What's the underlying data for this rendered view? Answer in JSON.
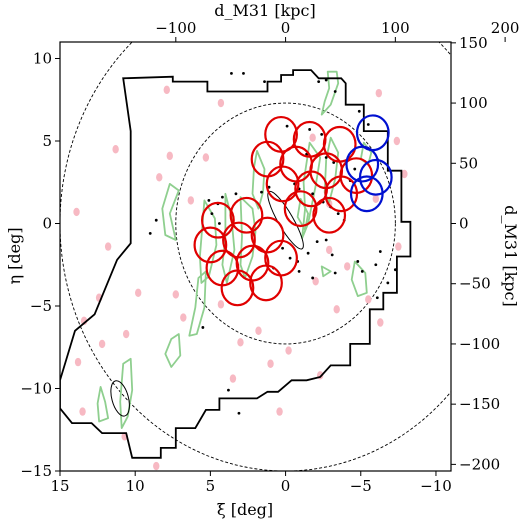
{
  "chart_data": {
    "type": "scatter",
    "xlabel": "ξ [deg]",
    "ylabel": "η [deg]",
    "top_xlabel": "d_M31 [kpc]",
    "right_ylabel": "d_M31 [kpc]",
    "xlim": [
      15,
      -11
    ],
    "ylim": [
      -15,
      11
    ],
    "x_ticks": [
      15,
      10,
      5,
      0,
      -5,
      -10
    ],
    "y_ticks": [
      10,
      5,
      0,
      -5,
      -10,
      -15
    ],
    "x_tick_labels": [
      "15",
      "10",
      "5",
      "0",
      "−5",
      "−10"
    ],
    "y_tick_labels": [
      "10",
      "5",
      "0",
      "−5",
      "−10",
      "−15"
    ],
    "top_ticks_kpc": [
      -100,
      0,
      100,
      200
    ],
    "top_tick_labels": [
      "−100",
      "0",
      "100",
      "200"
    ],
    "right_ticks_kpc": [
      150,
      100,
      50,
      0,
      -50,
      -100,
      -150,
      -200
    ],
    "right_tick_labels": [
      "150",
      "100",
      "50",
      "0",
      "−50",
      "−100",
      "−150",
      "−200"
    ],
    "kpc_per_deg": 13.7,
    "circles_dashed_radius_deg": [
      7.3,
      15
    ],
    "red_fields": [
      [
        0.3,
        5.4
      ],
      [
        -1.6,
        5.1
      ],
      [
        -3.6,
        4.8
      ],
      [
        1.2,
        3.9
      ],
      [
        -0.7,
        3.6
      ],
      [
        -2.7,
        3.2
      ],
      [
        -4.7,
        2.9
      ],
      [
        0.2,
        2.4
      ],
      [
        -1.7,
        2.1
      ],
      [
        -3.7,
        1.8
      ],
      [
        -1.0,
        0.9
      ],
      [
        -2.9,
        0.5
      ],
      [
        4.5,
        0.2
      ],
      [
        2.6,
        0.5
      ],
      [
        5.0,
        -1.3
      ],
      [
        3.1,
        -1.0
      ],
      [
        1.2,
        -0.7
      ],
      [
        4.2,
        -2.7
      ],
      [
        2.2,
        -2.4
      ],
      [
        0.3,
        -2.1
      ],
      [
        3.2,
        -3.9
      ],
      [
        1.3,
        -3.6
      ]
    ],
    "blue_fields": [
      [
        -5.8,
        5.5
      ],
      [
        -5.1,
        3.6
      ],
      [
        -6.0,
        2.8
      ],
      [
        -5.4,
        1.8
      ]
    ],
    "field_radius_deg": 1.05,
    "survey_outline": [
      [
        1.2,
        8.6
      ],
      [
        0.3,
        8.6
      ],
      [
        0.3,
        9.0
      ],
      [
        -0.5,
        9.0
      ],
      [
        -0.5,
        9.3
      ],
      [
        -1.7,
        9.3
      ],
      [
        -2.2,
        8.8
      ],
      [
        -3.7,
        8.8
      ],
      [
        -4.0,
        8.5
      ],
      [
        -4.0,
        7.2
      ],
      [
        -5.2,
        7.2
      ],
      [
        -5.2,
        5.6
      ],
      [
        -6.8,
        5.6
      ],
      [
        -6.8,
        3.2
      ],
      [
        -7.7,
        3.2
      ],
      [
        -7.7,
        0.1
      ],
      [
        -8.3,
        0.1
      ],
      [
        -8.3,
        -2.0
      ],
      [
        -7.4,
        -2.0
      ],
      [
        -7.4,
        -4.2
      ],
      [
        -6.5,
        -4.2
      ],
      [
        -6.5,
        -5.2
      ],
      [
        -5.6,
        -5.2
      ],
      [
        -5.6,
        -7.3
      ],
      [
        -4.3,
        -7.3
      ],
      [
        -4.3,
        -8.6
      ],
      [
        -3.0,
        -8.6
      ],
      [
        -2.3,
        -9.3
      ],
      [
        -1.4,
        -9.5
      ],
      [
        -0.4,
        -9.5
      ],
      [
        0.5,
        -10.2
      ],
      [
        1.2,
        -10.2
      ],
      [
        1.9,
        -10.6
      ],
      [
        3.0,
        -10.6
      ],
      [
        3.6,
        -10.6
      ],
      [
        4.4,
        -10.6
      ],
      [
        4.4,
        -11.3
      ],
      [
        5.3,
        -11.3
      ],
      [
        6.0,
        -12.4
      ],
      [
        7.3,
        -12.4
      ],
      [
        7.3,
        -13.6
      ],
      [
        8.3,
        -13.6
      ],
      [
        8.3,
        -14.2
      ],
      [
        10.2,
        -14.2
      ],
      [
        10.6,
        -12.7
      ],
      [
        12.2,
        -12.7
      ],
      [
        12.9,
        -12.1
      ],
      [
        14.2,
        -12.1
      ],
      [
        15.0,
        -11.2
      ],
      [
        15.0,
        -9.5
      ],
      [
        14.0,
        -6.5
      ],
      [
        12.7,
        -5.5
      ],
      [
        11.2,
        -2.2
      ],
      [
        10.3,
        -1.2
      ],
      [
        10.3,
        3.7
      ],
      [
        10.3,
        5.6
      ],
      [
        10.8,
        8.8
      ],
      [
        7.5,
        8.9
      ],
      [
        7.5,
        8.6
      ],
      [
        5.2,
        8.6
      ],
      [
        5.2,
        8.0
      ],
      [
        1.2,
        8.0
      ],
      [
        1.2,
        8.6
      ]
    ],
    "green_contours": [
      [
        [
          -2.8,
          9.2
        ],
        [
          -3.4,
          9.2
        ],
        [
          -3.5,
          8.5
        ],
        [
          -3.0,
          7.2
        ],
        [
          -2.4,
          6.6
        ],
        [
          -2.6,
          7.4
        ],
        [
          -2.9,
          8.2
        ],
        [
          -2.8,
          9.2
        ]
      ],
      [
        [
          -1.6,
          4.9
        ],
        [
          -2.3,
          4.0
        ],
        [
          -2.0,
          2.3
        ],
        [
          -1.5,
          0.0
        ],
        [
          -1.1,
          -0.9
        ],
        [
          -1.3,
          0.9
        ],
        [
          -1.2,
          2.5
        ],
        [
          -1.6,
          4.9
        ]
      ],
      [
        [
          -3.0,
          5.2
        ],
        [
          -3.5,
          4.3
        ],
        [
          -3.3,
          2.7
        ],
        [
          -2.9,
          1.3
        ],
        [
          -2.6,
          1.9
        ],
        [
          -2.7,
          3.9
        ],
        [
          -3.0,
          5.2
        ]
      ],
      [
        [
          -5.2,
          4.9
        ],
        [
          -5.7,
          4.3
        ],
        [
          -5.5,
          3.6
        ],
        [
          -5.0,
          3.9
        ],
        [
          -5.2,
          4.9
        ]
      ],
      [
        [
          -1.0,
          1.5
        ],
        [
          -1.5,
          0.6
        ],
        [
          -1.3,
          -0.4
        ],
        [
          -0.8,
          0.4
        ],
        [
          -1.0,
          1.5
        ]
      ],
      [
        [
          1.9,
          4.4
        ],
        [
          1.4,
          3.3
        ],
        [
          1.5,
          1.9
        ],
        [
          1.8,
          0.9
        ],
        [
          2.2,
          1.8
        ],
        [
          2.1,
          3.4
        ],
        [
          1.9,
          4.4
        ]
      ],
      [
        [
          3.0,
          1.6
        ],
        [
          2.2,
          0.9
        ],
        [
          2.0,
          -0.5
        ],
        [
          2.2,
          -2.0
        ],
        [
          2.7,
          -3.3
        ],
        [
          3.0,
          -2.5
        ],
        [
          2.9,
          -0.8
        ],
        [
          3.0,
          1.6
        ]
      ],
      [
        [
          4.0,
          1.8
        ],
        [
          3.6,
          0.4
        ],
        [
          3.4,
          -1.6
        ],
        [
          3.9,
          -3.6
        ],
        [
          4.2,
          -2.5
        ],
        [
          4.0,
          -0.8
        ],
        [
          4.0,
          1.8
        ]
      ],
      [
        [
          5.4,
          1.4
        ],
        [
          4.7,
          0.3
        ],
        [
          4.6,
          -1.3
        ],
        [
          5.1,
          -3.2
        ],
        [
          5.6,
          -3.6
        ],
        [
          5.7,
          -2.0
        ],
        [
          5.4,
          1.4
        ]
      ],
      [
        [
          7.7,
          2.4
        ],
        [
          7.1,
          2.0
        ],
        [
          7.7,
          0.6
        ],
        [
          7.3,
          -1.0
        ],
        [
          8.0,
          -0.7
        ],
        [
          8.2,
          0.9
        ],
        [
          7.7,
          2.4
        ]
      ],
      [
        [
          5.3,
          -2.9
        ],
        [
          5.8,
          -3.3
        ],
        [
          6.0,
          -5.1
        ],
        [
          6.4,
          -6.8
        ],
        [
          5.9,
          -6.7
        ],
        [
          5.4,
          -5.1
        ],
        [
          5.3,
          -2.9
        ]
      ],
      [
        [
          -4.6,
          -2.3
        ],
        [
          -5.3,
          -3.0
        ],
        [
          -5.4,
          -4.2
        ],
        [
          -4.8,
          -4.4
        ],
        [
          -4.4,
          -3.4
        ],
        [
          -4.6,
          -2.3
        ]
      ],
      [
        [
          -2.4,
          -2.6
        ],
        [
          -3.0,
          -2.9
        ],
        [
          -2.5,
          -3.2
        ],
        [
          -2.4,
          -2.6
        ]
      ],
      [
        [
          10.3,
          -8.2
        ],
        [
          10.8,
          -8.5
        ],
        [
          11.0,
          -10.8
        ],
        [
          10.9,
          -12.4
        ],
        [
          10.5,
          -11.7
        ],
        [
          10.2,
          -10.1
        ],
        [
          10.3,
          -8.2
        ]
      ],
      [
        [
          12.3,
          -9.9
        ],
        [
          12.0,
          -10.8
        ],
        [
          11.8,
          -11.8
        ],
        [
          12.4,
          -12.0
        ],
        [
          12.5,
          -10.9
        ],
        [
          12.3,
          -9.9
        ]
      ],
      [
        [
          7.1,
          -6.7
        ],
        [
          7.6,
          -7.0
        ],
        [
          8.0,
          -7.9
        ],
        [
          7.6,
          -8.7
        ],
        [
          7.0,
          -8.0
        ],
        [
          7.1,
          -6.7
        ]
      ]
    ],
    "pink_blobs": [
      [
        7.9,
        8.1
      ],
      [
        4.3,
        7.3
      ],
      [
        -1.8,
        5.2
      ],
      [
        7.7,
        4.1
      ],
      [
        8.4,
        2.8
      ],
      [
        5.3,
        4.0
      ],
      [
        6.3,
        1.4
      ],
      [
        11.3,
        4.5
      ],
      [
        -7.4,
        5.0
      ],
      [
        -7.9,
        3.0
      ],
      [
        -6.0,
        1.5
      ],
      [
        -7.5,
        -1.4
      ],
      [
        -2.9,
        -1.6
      ],
      [
        -5.5,
        -4.6
      ],
      [
        -6.3,
        -6.0
      ],
      [
        -4.1,
        -2.6
      ],
      [
        -2.0,
        -3.5
      ],
      [
        4.3,
        -4.9
      ],
      [
        9.8,
        -4.2
      ],
      [
        7.3,
        -4.3
      ],
      [
        12.4,
        -4.5
      ],
      [
        13.4,
        -5.9
      ],
      [
        13.8,
        -8.4
      ],
      [
        12.2,
        -7.3
      ],
      [
        10.6,
        -6.7
      ],
      [
        6.8,
        -5.7
      ],
      [
        1.8,
        -6.5
      ],
      [
        -3.4,
        -5.2
      ],
      [
        3.0,
        -7.2
      ],
      [
        -0.2,
        -7.7
      ],
      [
        1.0,
        -8.5
      ],
      [
        3.5,
        -9.4
      ],
      [
        -2.3,
        -9.2
      ],
      [
        0.4,
        -11.4
      ],
      [
        10.7,
        -12.9
      ],
      [
        8.6,
        -14.7
      ],
      [
        13.5,
        -11.4
      ],
      [
        -6.2,
        7.9
      ],
      [
        -2.9,
        1.2
      ],
      [
        11.8,
        -1.4
      ],
      [
        13.9,
        0.7
      ]
    ],
    "black_dots": [
      [
        3.6,
        9.1
      ],
      [
        2.8,
        9.1
      ],
      [
        1.4,
        8.6
      ],
      [
        -2.2,
        8.6
      ],
      [
        -2.7,
        8.7
      ],
      [
        -3.3,
        8.0
      ],
      [
        -4.9,
        6.8
      ],
      [
        -5.5,
        6.0
      ],
      [
        -1.6,
        5.7
      ],
      [
        -0.1,
        5.9
      ],
      [
        -2.4,
        5.4
      ],
      [
        -1.4,
        4.2
      ],
      [
        -2.7,
        4.0
      ],
      [
        -3.2,
        3.7
      ],
      [
        -4.6,
        3.3
      ],
      [
        -4.3,
        2.6
      ],
      [
        -0.6,
        2.4
      ],
      [
        -0.9,
        2.1
      ],
      [
        -1.8,
        1.8
      ],
      [
        -2.5,
        1.3
      ],
      [
        -3.0,
        1.0
      ],
      [
        -3.5,
        0.6
      ],
      [
        -3.9,
        0.2
      ],
      [
        1.1,
        2.2
      ],
      [
        1.6,
        1.9
      ],
      [
        3.3,
        1.8
      ],
      [
        4.2,
        1.6
      ],
      [
        4.5,
        1.2
      ],
      [
        5.1,
        1.4
      ],
      [
        4.9,
        0.6
      ],
      [
        4.4,
        0.0
      ],
      [
        8.6,
        0.2
      ],
      [
        9.0,
        -0.6
      ],
      [
        -0.3,
        -2.1
      ],
      [
        -0.8,
        -2.3
      ],
      [
        -1.5,
        -1.8
      ],
      [
        -2.1,
        -1.1
      ],
      [
        -2.7,
        -1.0
      ],
      [
        -3.1,
        -1.9
      ],
      [
        -3.3,
        -3.0
      ],
      [
        -4.8,
        -2.3
      ],
      [
        -5.1,
        -2.9
      ],
      [
        -6.0,
        -2.5
      ],
      [
        -6.3,
        -1.7
      ],
      [
        -6.1,
        -4.5
      ],
      [
        -6.8,
        -3.6
      ],
      [
        -0.9,
        -2.9
      ],
      [
        0.2,
        -1.5
      ],
      [
        0.8,
        -2.7
      ],
      [
        -1.8,
        -3.3
      ],
      [
        3.1,
        -11.5
      ],
      [
        3.8,
        -10.1
      ],
      [
        5.5,
        -6.3
      ],
      [
        -7.3,
        -2.8
      ]
    ],
    "ellipses": [
      {
        "cx": 0.0,
        "cy": 0.2,
        "rx": 0.5,
        "ry": 2.0,
        "angle": -30
      },
      {
        "cx": 11.0,
        "cy": -10.6,
        "rx": 0.55,
        "ry": 1.1,
        "angle": -15
      }
    ]
  }
}
